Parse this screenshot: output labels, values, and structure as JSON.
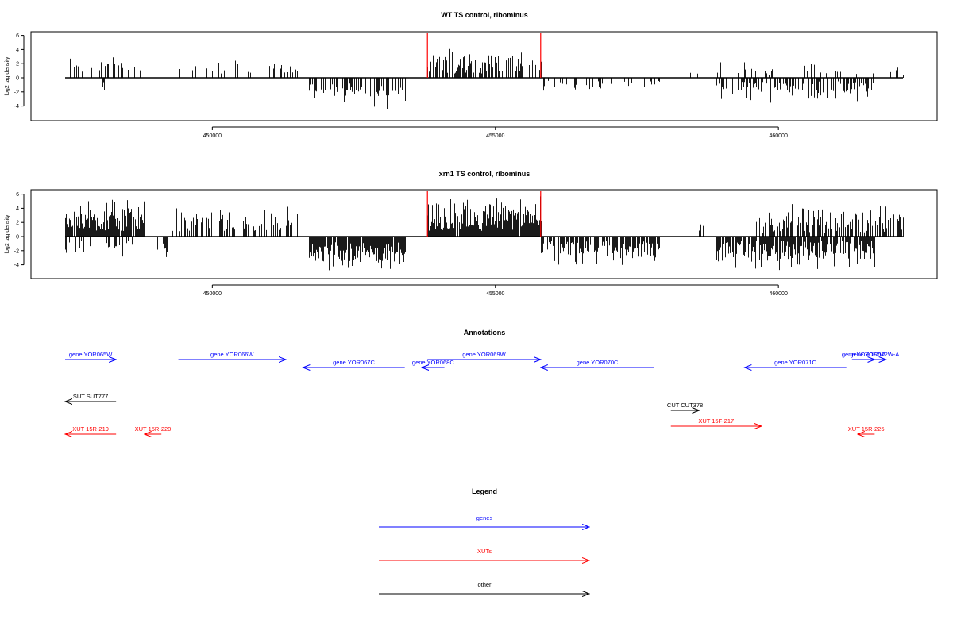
{
  "colors": {
    "genes": "#0000ff",
    "xuts": "#ff0000",
    "other": "#000000",
    "bars": "#000000",
    "marker": "#ff0000"
  },
  "chart_data": [
    {
      "type": "bar",
      "title": "WT TS control, ribominus",
      "ylabel": "log2 tag density",
      "ylim": [
        -6.5,
        6.5
      ],
      "yticks": [
        -4,
        -2,
        0,
        2,
        4,
        6
      ],
      "xlim": [
        446800,
        462400
      ],
      "xticks": [
        450000,
        455000,
        460000
      ],
      "xticklabels": [
        "450000",
        "455000",
        "460000"
      ],
      "markers_x": [
        453800,
        455800
      ],
      "regions": [
        {
          "start": 447400,
          "end": 448800,
          "sign": 1,
          "density": 0.3,
          "max": 3.5,
          "min": 0.6
        },
        {
          "start": 448000,
          "end": 448300,
          "sign": -1,
          "density": 0.2,
          "max": 2.5,
          "min": 0.5
        },
        {
          "start": 449300,
          "end": 450800,
          "sign": 1,
          "density": 0.2,
          "max": 2.7,
          "min": 0.5
        },
        {
          "start": 451000,
          "end": 451500,
          "sign": 1,
          "density": 0.25,
          "max": 2.8,
          "min": 0.6
        },
        {
          "start": 451700,
          "end": 453400,
          "sign": -1,
          "density": 0.55,
          "max": 4.5,
          "min": 0.8
        },
        {
          "start": 453800,
          "end": 455800,
          "sign": 1,
          "density": 0.55,
          "max": 4.8,
          "min": 0.6
        },
        {
          "start": 455800,
          "end": 457900,
          "sign": -1,
          "density": 0.25,
          "max": 2.2,
          "min": 0.4
        },
        {
          "start": 458400,
          "end": 458600,
          "sign": 1,
          "density": 0.1,
          "max": 1,
          "min": 0.3
        },
        {
          "start": 458900,
          "end": 461700,
          "sign": -1,
          "density": 0.45,
          "max": 3.6,
          "min": 0.5
        },
        {
          "start": 458900,
          "end": 462200,
          "sign": 1,
          "density": 0.12,
          "max": 2.6,
          "min": 0.4
        }
      ]
    },
    {
      "type": "bar",
      "title": "xrn1 TS control, ribominus",
      "ylabel": "log2 tag density",
      "ylim": [
        -6.5,
        6.5
      ],
      "yticks": [
        -4,
        -2,
        0,
        2,
        4,
        6
      ],
      "xlim": [
        446800,
        462400
      ],
      "xticks": [
        450000,
        455000,
        460000
      ],
      "xticklabels": [
        "450000",
        "455000",
        "460000"
      ],
      "markers_x": [
        453800,
        455800
      ],
      "regions": [
        {
          "start": 447400,
          "end": 448800,
          "sign": 1,
          "density": 0.95,
          "max": 6,
          "min": 0.8
        },
        {
          "start": 447400,
          "end": 448800,
          "sign": -1,
          "density": 0.18,
          "max": 3,
          "min": 0.5
        },
        {
          "start": 449000,
          "end": 449300,
          "sign": -1,
          "density": 0.2,
          "max": 3,
          "min": 0.6
        },
        {
          "start": 449300,
          "end": 451500,
          "sign": 1,
          "density": 0.45,
          "max": 4.6,
          "min": 0.5
        },
        {
          "start": 451700,
          "end": 453400,
          "sign": -1,
          "density": 0.95,
          "max": 5.5,
          "min": 0.8
        },
        {
          "start": 453800,
          "end": 455800,
          "sign": 1,
          "density": 0.95,
          "max": 6,
          "min": 0.8
        },
        {
          "start": 455800,
          "end": 457900,
          "sign": -1,
          "density": 0.75,
          "max": 4.5,
          "min": 0.6
        },
        {
          "start": 458600,
          "end": 458700,
          "sign": 1,
          "density": 0.2,
          "max": 2.2,
          "min": 0.5
        },
        {
          "start": 458900,
          "end": 461700,
          "sign": -1,
          "density": 0.85,
          "max": 5.2,
          "min": 0.6
        },
        {
          "start": 459600,
          "end": 462200,
          "sign": 1,
          "density": 0.55,
          "max": 5,
          "min": 0.5
        }
      ]
    }
  ],
  "annotations": {
    "title": "Annotations",
    "features": [
      {
        "label": "gene YOR065W",
        "start": 447400,
        "end": 448300,
        "strand": "+",
        "class": "genes",
        "row": 0
      },
      {
        "label": "gene YOR066W",
        "start": 449400,
        "end": 451300,
        "strand": "+",
        "class": "genes",
        "row": 0
      },
      {
        "label": "gene YOR067C",
        "start": 451600,
        "end": 453400,
        "strand": "-",
        "class": "genes",
        "row": 1
      },
      {
        "label": "gene YOR068C",
        "start": 453700,
        "end": 454100,
        "strand": "-",
        "class": "genes",
        "row": 1
      },
      {
        "label": "gene YOR069W",
        "start": 453800,
        "end": 455800,
        "strand": "+",
        "class": "genes",
        "row": 0
      },
      {
        "label": "gene YOR070C",
        "start": 455800,
        "end": 457800,
        "strand": "-",
        "class": "genes",
        "row": 1
      },
      {
        "label": "gene YOR071C",
        "start": 459400,
        "end": 461200,
        "strand": "-",
        "class": "genes",
        "row": 1
      },
      {
        "label": "gene YOR072W",
        "start": 461300,
        "end": 461700,
        "strand": "+",
        "class": "genes",
        "row": 0
      },
      {
        "label": "gene YOR072W-A",
        "start": 461500,
        "end": 461900,
        "strand": "+",
        "class": "genes",
        "row": 0
      },
      {
        "label": "SUT SUT777",
        "start": 447400,
        "end": 448300,
        "strand": "-",
        "class": "other",
        "row": 2
      },
      {
        "label": "CUT CUT378",
        "start": 458100,
        "end": 458600,
        "strand": "+",
        "class": "other",
        "row": 3
      },
      {
        "label": "XUT 15R-219",
        "start": 447400,
        "end": 448300,
        "strand": "-",
        "class": "xuts",
        "row": 4
      },
      {
        "label": "XUT 15R-220",
        "start": 448800,
        "end": 449100,
        "strand": "-",
        "class": "xuts",
        "row": 4
      },
      {
        "label": "XUT 15F-217",
        "start": 458100,
        "end": 459700,
        "strand": "+",
        "class": "xuts",
        "row": 5
      },
      {
        "label": "XUT 15R-225",
        "start": 461400,
        "end": 461700,
        "strand": "-",
        "class": "xuts",
        "row": 4
      }
    ]
  },
  "legend": {
    "title": "Legend",
    "items": [
      {
        "label": "genes",
        "class": "genes"
      },
      {
        "label": "XUTs",
        "class": "xuts"
      },
      {
        "label": "other",
        "class": "other"
      }
    ]
  }
}
